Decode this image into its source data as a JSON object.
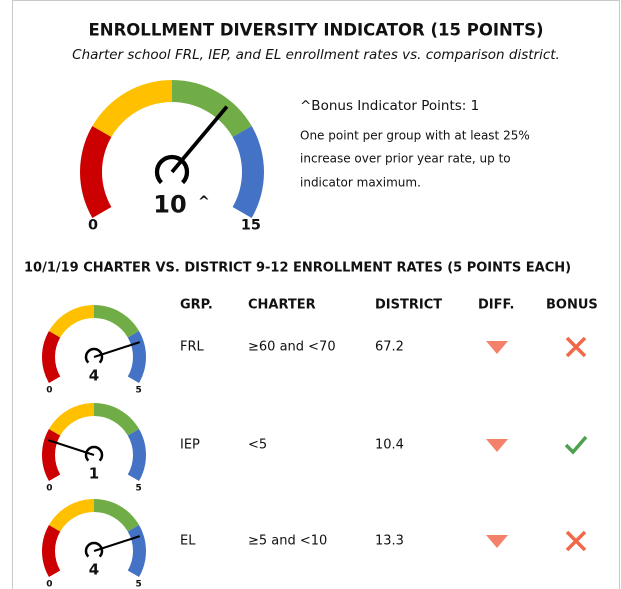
{
  "header": {
    "title": "ENROLLMENT DIVERSITY INDICATOR (15 POINTS)",
    "subtitle": "Charter school FRL, IEP, and EL enrollment rates vs. comparison district."
  },
  "main_gauge": {
    "value": 10,
    "min": 0,
    "max": 15,
    "marker": "^"
  },
  "bonus": {
    "title": "^Bonus Indicator Points: 1",
    "lines": [
      "One point per group with at least 25%",
      "increase over prior year rate, up to",
      "indicator maximum."
    ]
  },
  "table": {
    "title": "10/1/19 CHARTER VS. DISTRICT 9-12 ENROLLMENT RATES (5 POINTS EACH)",
    "columns": [
      "GRP.",
      "CHARTER",
      "DISTRICT",
      "DIFF.",
      "BONUS"
    ],
    "rows": [
      {
        "gauge": {
          "value": 4,
          "min": 0,
          "max": 5
        },
        "group": "FRL",
        "charter": "≥60 and <70",
        "district": "67.2",
        "diff": "down",
        "bonus": false
      },
      {
        "gauge": {
          "value": 1,
          "min": 0,
          "max": 5
        },
        "group": "IEP",
        "charter": "<5",
        "district": "10.4",
        "diff": "down",
        "bonus": true
      },
      {
        "gauge": {
          "value": 4,
          "min": 0,
          "max": 5
        },
        "group": "EL",
        "charter": "≥5 and <10",
        "district": "13.3",
        "diff": "down",
        "bonus": false
      }
    ]
  }
}
